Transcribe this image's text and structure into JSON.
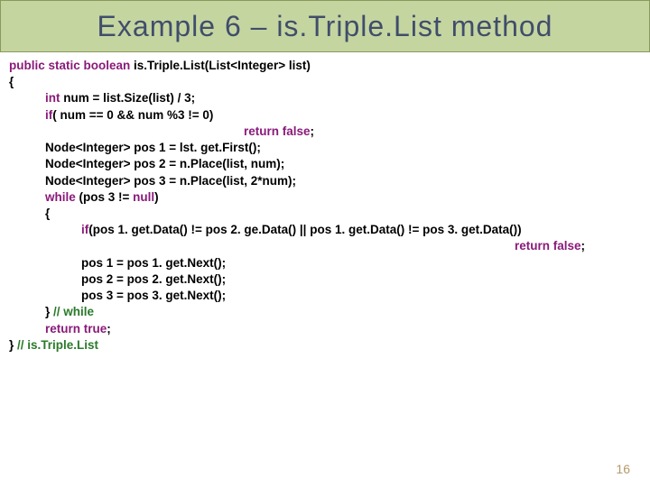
{
  "title": "Example  6 – is.Triple.List  method",
  "code": {
    "l1a": "public static boolean",
    "l1b": " is.Triple.List(List<Integer>   list)",
    "l2": "{",
    "l3a": "int",
    "l3b": " num = list.Size(list) / 3;",
    "l4a": "if",
    "l4b": "( num == 0 && num %3 != 0)",
    "l5a": "return false",
    "l5b": ";",
    "l6": "Node<Integer>  pos 1 = lst. get.First();",
    "l7": "Node<Integer>  pos 2 = n.Place(list, num);",
    "l8": "Node<Integer>  pos 3 = n.Place(list, 2*num);",
    "l9a": "while",
    "l9b": " (pos 3 != ",
    "l9c": "null",
    "l9d": ")",
    "l10": "{",
    "l11a": "if",
    "l11b": "(pos 1. get.Data() != pos 2. ge.Data() || pos 1. get.Data() != pos 3. get.Data())",
    "l12a": "return false",
    "l12b": ";",
    "l13": "pos 1 = pos 1. get.Next();",
    "l14": "pos 2 = pos 2. get.Next();",
    "l15": "pos 3 = pos 3. get.Next();",
    "l16a": "} ",
    "l16b": "// while",
    "l17a": "return true",
    "l17b": ";",
    "l18a": "} ",
    "l18b": "// is.Triple.List"
  },
  "page_num": "16",
  "colors": {
    "title_bg": "#c5d5a0",
    "title_border": "#8a9a5b",
    "title_text": "#404e6b",
    "keyword": "#8a1a7a",
    "comment": "#2a7a2a",
    "pagenum": "#b59a6b"
  }
}
